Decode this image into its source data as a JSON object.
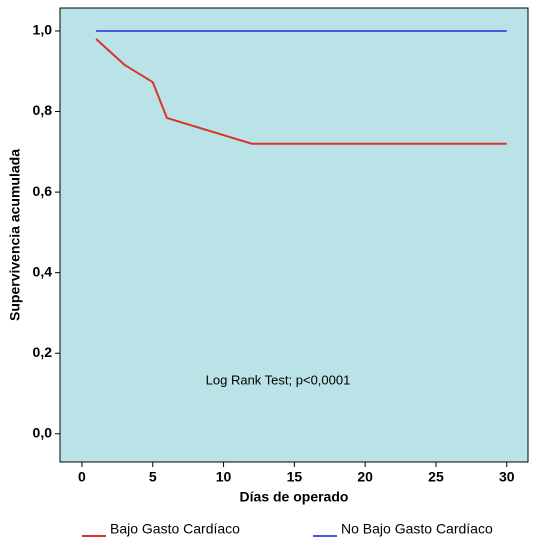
{
  "chart_data": {
    "type": "line",
    "xlabel": "Días de operado",
    "ylabel": "Supervivencia acumulada",
    "annotation": "Log Rank Test; p<0,0001",
    "xlim": [
      -1.55,
      31.5
    ],
    "ylim": [
      -0.07,
      1.057
    ],
    "xticks": [
      0,
      5,
      10,
      15,
      20,
      25,
      30
    ],
    "yticks": [
      {
        "value": 0,
        "label": "0,0"
      },
      {
        "value": 0.2,
        "label": "0,2"
      },
      {
        "value": 0.4,
        "label": "0,4"
      },
      {
        "value": 0.6,
        "label": "0,6"
      },
      {
        "value": 0.8,
        "label": "0,8"
      },
      {
        "value": 1,
        "label": "1,0"
      }
    ],
    "background": "#b9e3e6",
    "legend": "bottom",
    "series": [
      {
        "name": "Bajo Gasto Cardíaco",
        "color": "#d9342c",
        "x": [
          1,
          3,
          5,
          6,
          12,
          30
        ],
        "values": [
          0.98,
          0.916,
          0.873,
          0.784,
          0.72,
          0.72
        ]
      },
      {
        "name": "No Bajo Gasto Cardíaco",
        "color": "#4b55e6",
        "x": [
          1,
          30
        ],
        "values": [
          1,
          1
        ]
      }
    ]
  }
}
